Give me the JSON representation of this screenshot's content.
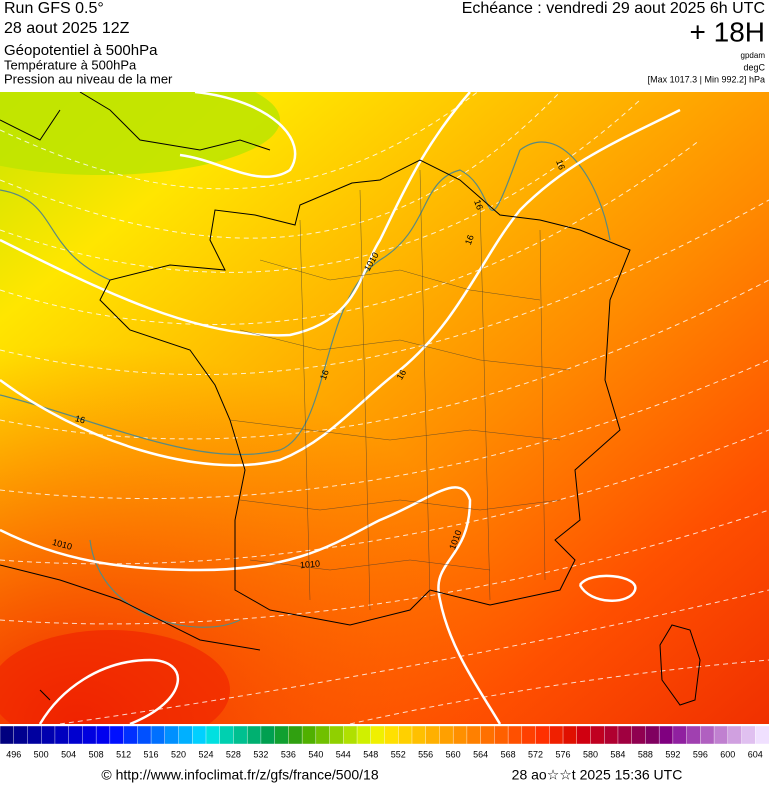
{
  "header": {
    "model": "Run GFS 0.5°",
    "run": "28 aout 2025 12Z",
    "field_1": "Géopotentiel à 500hPa",
    "field_2": "Température à 500hPa",
    "field_3": "Pression au niveau de la mer",
    "valid": "Echéance : vendredi 29 aout 2025 6h UTC",
    "lead": "+ 18H",
    "unit_1": "gpdam",
    "unit_2": "degC",
    "pressure_range": "[Max 1017.3 | Min 992.2] hPa"
  },
  "map": {
    "contour_labels": [
      "16",
      "16",
      "16",
      "16",
      "16",
      "16",
      "1010",
      "1010",
      "1010",
      "1010"
    ]
  },
  "colorbar": {
    "ticks": [
      496,
      500,
      504,
      508,
      512,
      516,
      520,
      524,
      528,
      532,
      536,
      540,
      544,
      548,
      552,
      556,
      560,
      564,
      568,
      572,
      576,
      580,
      584,
      588,
      592,
      596,
      600,
      604
    ],
    "colors": [
      "#00007f",
      "#00008f",
      "#00009f",
      "#0000af",
      "#0000bf",
      "#0000cf",
      "#0000df",
      "#0000ef",
      "#0010ff",
      "#0030ff",
      "#0050ff",
      "#0070ff",
      "#0090ff",
      "#00b0ff",
      "#00d0ff",
      "#00e0e0",
      "#00d0b0",
      "#00c090",
      "#00b070",
      "#00a050",
      "#10a030",
      "#30a010",
      "#50b000",
      "#70c000",
      "#90d000",
      "#b0e000",
      "#d0f000",
      "#f0f000",
      "#ffe000",
      "#ffd000",
      "#ffc000",
      "#ffb000",
      "#ffa000",
      "#ff9000",
      "#ff8000",
      "#ff7000",
      "#ff6000",
      "#ff5000",
      "#ff4000",
      "#ff3000",
      "#f02000",
      "#e01000",
      "#d00010",
      "#c00020",
      "#b00030",
      "#a00040",
      "#900050",
      "#800060",
      "#800080",
      "#9020a0",
      "#a040b0",
      "#b060c0",
      "#c080d0",
      "#d0a0e0",
      "#e0c0f0",
      "#f0e0ff"
    ]
  },
  "footer": {
    "url": "© http://www.infoclimat.fr/z/gfs/france/500/18",
    "timestamp": "28 ao☆☆t 2025 15:36 UTC"
  }
}
